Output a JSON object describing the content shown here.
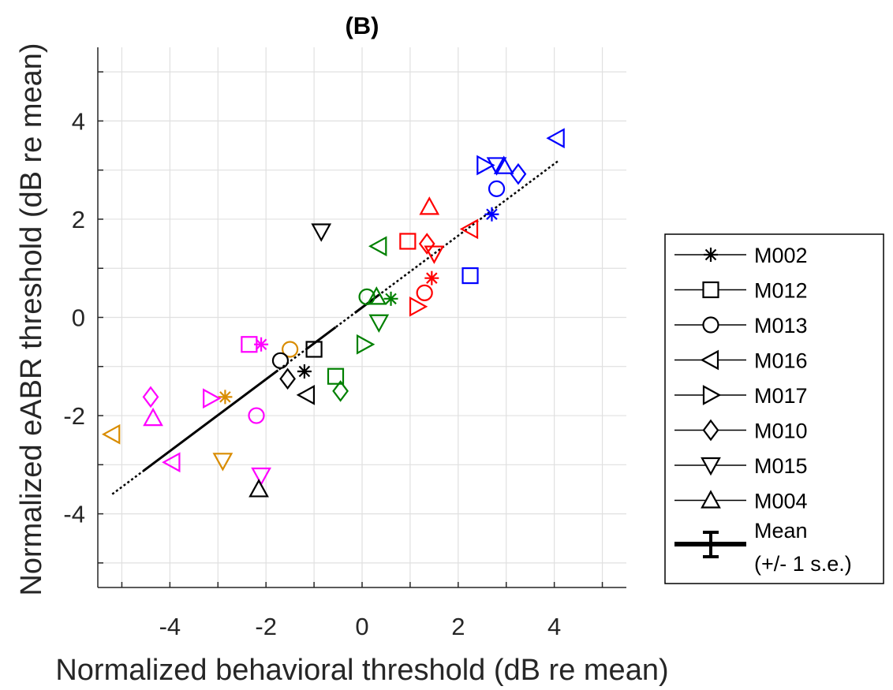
{
  "chart_data": {
    "type": "scatter",
    "title": "(B)",
    "xlabel": "Normalized behavioral threshold (dB re mean)",
    "ylabel": "Normalized eABR threshold (dB re mean)",
    "xlim": [
      -5.5,
      5.5
    ],
    "ylim": [
      -5.5,
      5.5
    ],
    "xticks": [
      -4,
      -2,
      0,
      2,
      4
    ],
    "yticks": [
      -4,
      -2,
      0,
      2,
      4
    ],
    "x_tick_labels": [
      "-4",
      "-2",
      "0",
      "2",
      "4"
    ],
    "y_tick_labels": [
      "-4",
      "-2",
      "0",
      "2",
      "4"
    ],
    "grid": true,
    "legend_position": "outside-right",
    "colors": {
      "black": "#000000",
      "blue": "#0000ff",
      "red": "#ff0000",
      "green": "#008000",
      "magenta": "#ff00ff",
      "orange": "#d98c00"
    },
    "series": [
      {
        "name": "M002",
        "marker": "star",
        "points": [
          {
            "x": 2.7,
            "y": 2.1,
            "color": "blue"
          },
          {
            "x": 1.45,
            "y": 0.8,
            "color": "red"
          },
          {
            "x": 0.6,
            "y": 0.38,
            "color": "green"
          },
          {
            "x": -2.1,
            "y": -0.55,
            "color": "magenta"
          },
          {
            "x": -2.85,
            "y": -1.62,
            "color": "orange"
          },
          {
            "x": -1.2,
            "y": -1.1,
            "color": "black"
          }
        ]
      },
      {
        "name": "M012",
        "marker": "square",
        "points": [
          {
            "x": 2.25,
            "y": 0.85,
            "color": "blue"
          },
          {
            "x": 0.95,
            "y": 1.55,
            "color": "red"
          },
          {
            "x": -0.55,
            "y": -1.2,
            "color": "green"
          },
          {
            "x": -2.35,
            "y": -0.55,
            "color": "magenta"
          },
          {
            "x": -1.0,
            "y": -0.65,
            "color": "black"
          }
        ]
      },
      {
        "name": "M013",
        "marker": "circle",
        "points": [
          {
            "x": 2.8,
            "y": 2.62,
            "color": "blue"
          },
          {
            "x": 1.3,
            "y": 0.5,
            "color": "red"
          },
          {
            "x": 0.1,
            "y": 0.42,
            "color": "green"
          },
          {
            "x": -2.2,
            "y": -2.0,
            "color": "magenta"
          },
          {
            "x": -1.5,
            "y": -0.65,
            "color": "orange"
          },
          {
            "x": -1.7,
            "y": -0.88,
            "color": "black"
          }
        ]
      },
      {
        "name": "M016",
        "marker": "triangle-left",
        "points": [
          {
            "x": 4.05,
            "y": 3.65,
            "color": "blue"
          },
          {
            "x": 2.25,
            "y": 1.8,
            "color": "red"
          },
          {
            "x": 0.35,
            "y": 1.45,
            "color": "green"
          },
          {
            "x": -3.95,
            "y": -2.95,
            "color": "magenta"
          },
          {
            "x": -5.2,
            "y": -2.38,
            "color": "orange"
          },
          {
            "x": -1.15,
            "y": -1.58,
            "color": "black"
          }
        ]
      },
      {
        "name": "M017",
        "marker": "triangle-right",
        "points": [
          {
            "x": 2.55,
            "y": 3.1,
            "color": "blue"
          },
          {
            "x": 1.15,
            "y": 0.22,
            "color": "red"
          },
          {
            "x": 0.05,
            "y": -0.55,
            "color": "green"
          },
          {
            "x": -3.15,
            "y": -1.65,
            "color": "magenta"
          }
        ]
      },
      {
        "name": "M010",
        "marker": "diamond",
        "points": [
          {
            "x": 3.25,
            "y": 2.92,
            "color": "blue"
          },
          {
            "x": 1.35,
            "y": 1.5,
            "color": "red"
          },
          {
            "x": -0.45,
            "y": -1.5,
            "color": "green"
          },
          {
            "x": -4.4,
            "y": -1.62,
            "color": "magenta"
          },
          {
            "x": -1.55,
            "y": -1.25,
            "color": "black"
          }
        ]
      },
      {
        "name": "M015",
        "marker": "triangle-down",
        "points": [
          {
            "x": 2.8,
            "y": 3.1,
            "color": "blue"
          },
          {
            "x": 1.5,
            "y": 1.3,
            "color": "red"
          },
          {
            "x": 0.35,
            "y": -0.1,
            "color": "green"
          },
          {
            "x": -2.9,
            "y": -2.92,
            "color": "orange"
          },
          {
            "x": -2.1,
            "y": -3.22,
            "color": "magenta"
          },
          {
            "x": -0.85,
            "y": 1.75,
            "color": "black"
          }
        ]
      },
      {
        "name": "M004",
        "marker": "triangle-up",
        "points": [
          {
            "x": 2.95,
            "y": 3.08,
            "color": "blue"
          },
          {
            "x": 1.4,
            "y": 2.25,
            "color": "red"
          },
          {
            "x": 0.3,
            "y": 0.42,
            "color": "green"
          },
          {
            "x": -4.35,
            "y": -2.05,
            "color": "magenta"
          },
          {
            "x": -2.15,
            "y": -3.5,
            "color": "black"
          }
        ]
      }
    ],
    "fit_line": {
      "x": [
        -5.2,
        4.1
      ],
      "y": [
        -3.6,
        3.2
      ],
      "solid_segments": [
        [
          -4.55,
          -1.75
        ],
        [
          -1.15,
          -0.55
        ],
        [
          -0.15,
          0.35
        ]
      ]
    },
    "legend": {
      "entries": [
        {
          "label": "M002",
          "marker": "star"
        },
        {
          "label": "M012",
          "marker": "square"
        },
        {
          "label": "M013",
          "marker": "circle"
        },
        {
          "label": "M016",
          "marker": "triangle-left"
        },
        {
          "label": "M017",
          "marker": "triangle-right"
        },
        {
          "label": "M010",
          "marker": "diamond"
        },
        {
          "label": "M015",
          "marker": "triangle-down"
        },
        {
          "label": "M004",
          "marker": "triangle-up"
        }
      ],
      "mean_label_line1": "Mean",
      "mean_label_line2": "(+/- 1 s.e.)"
    }
  }
}
